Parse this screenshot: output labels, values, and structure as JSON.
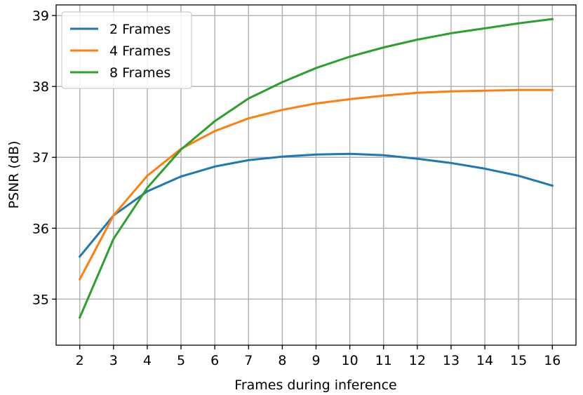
{
  "chart_data": {
    "type": "line",
    "title": "",
    "xlabel": "Frames during inference",
    "ylabel": "PSNR (dB)",
    "x": [
      2,
      3,
      4,
      5,
      6,
      7,
      8,
      9,
      10,
      11,
      12,
      13,
      14,
      15,
      16
    ],
    "xticks": [
      "2",
      "3",
      "4",
      "5",
      "6",
      "7",
      "8",
      "9",
      "10",
      "11",
      "12",
      "13",
      "14",
      "15",
      "16"
    ],
    "yticks": [
      "35",
      "36",
      "37",
      "38",
      "39"
    ],
    "xlim": [
      1.3,
      16.7
    ],
    "ylim": [
      34.35,
      39.15
    ],
    "grid": true,
    "legend_position": "top-left",
    "series": [
      {
        "name": "2 Frames",
        "color": "#1f77b4",
        "values": [
          35.6,
          36.18,
          36.52,
          36.73,
          36.87,
          36.96,
          37.01,
          37.04,
          37.05,
          37.03,
          36.98,
          36.92,
          36.84,
          36.74,
          36.6
        ]
      },
      {
        "name": "4 Frames",
        "color": "#ff7f0e",
        "values": [
          35.28,
          36.18,
          36.74,
          37.12,
          37.37,
          37.55,
          37.67,
          37.76,
          37.82,
          37.87,
          37.91,
          37.93,
          37.94,
          37.95,
          37.95
        ]
      },
      {
        "name": "8 Frames",
        "color": "#2ca02c",
        "values": [
          34.74,
          35.85,
          36.57,
          37.11,
          37.51,
          37.83,
          38.06,
          38.26,
          38.42,
          38.55,
          38.66,
          38.75,
          38.82,
          38.89,
          38.95
        ]
      }
    ]
  }
}
